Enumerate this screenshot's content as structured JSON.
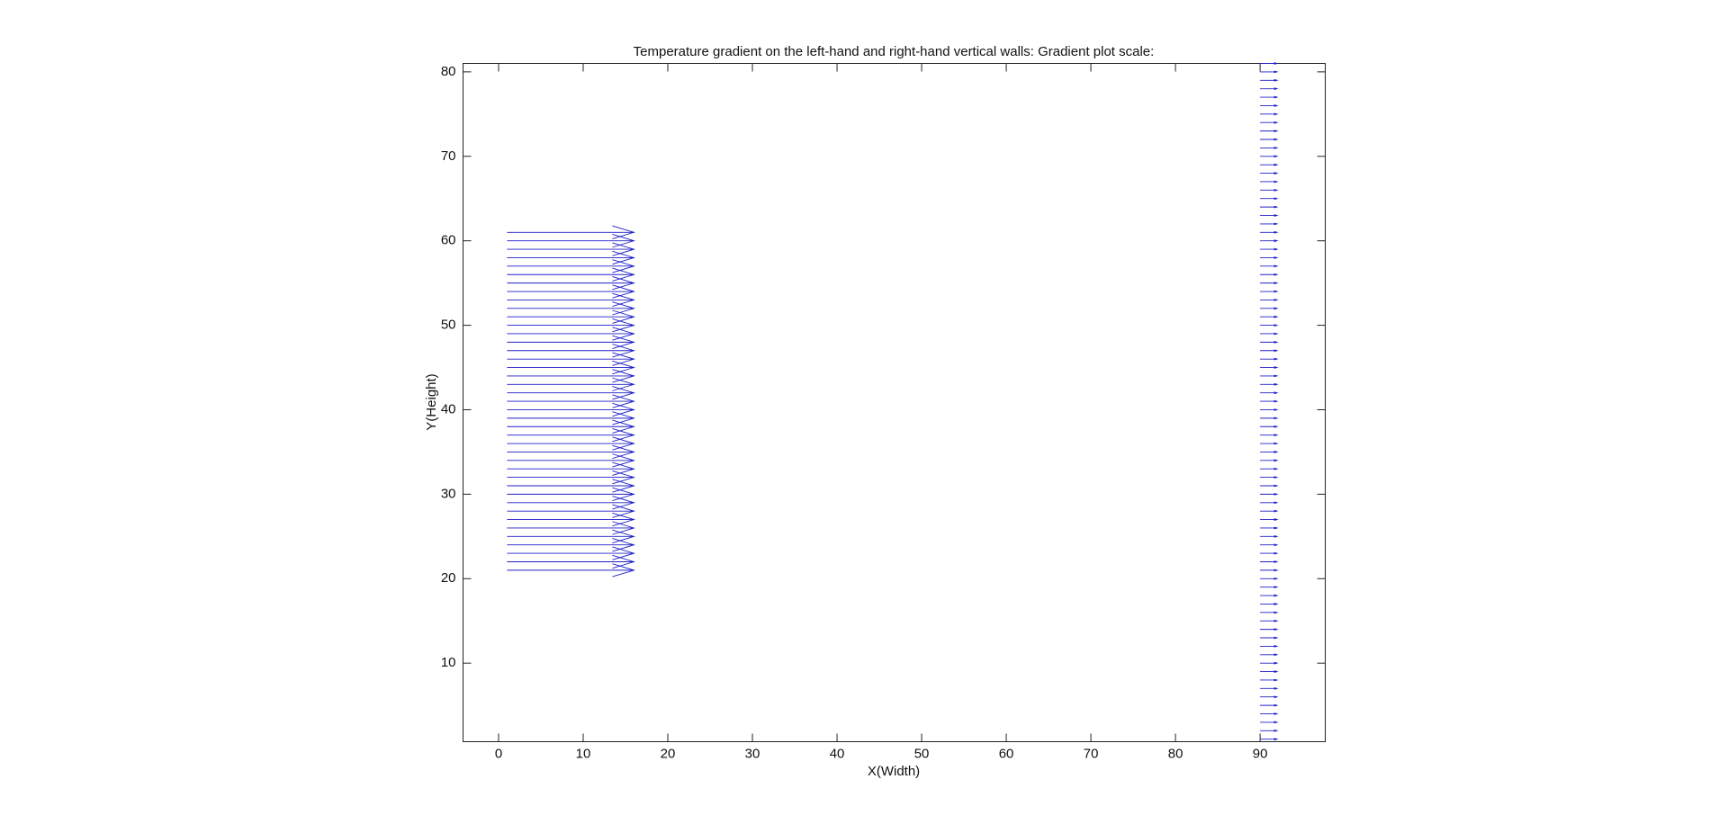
{
  "chart_data": {
    "type": "quiver",
    "title": "Temperature gradient on the left-hand and right-hand vertical walls: Gradient plot scale:",
    "xlabel": "X(Width)",
    "ylabel": "Y(Height)",
    "xlim": [
      -4.2,
      97.7
    ],
    "ylim": [
      0.7,
      81.0
    ],
    "xticks": [
      0,
      10,
      20,
      30,
      40,
      50,
      60,
      70,
      80,
      90
    ],
    "yticks": [
      10,
      20,
      30,
      40,
      50,
      60,
      70,
      80
    ],
    "color": "#1f1fc8",
    "series": [
      {
        "x": [
          1,
          1,
          1,
          1,
          1,
          1,
          1,
          1,
          1,
          1,
          1,
          1,
          1,
          1,
          1,
          1,
          1,
          1,
          1,
          1,
          1,
          1,
          1,
          1,
          1,
          1,
          1,
          1,
          1,
          1,
          1,
          1,
          1,
          1,
          1,
          1,
          1,
          1,
          1,
          1,
          1
        ],
        "y": [
          21,
          22,
          23,
          24,
          25,
          26,
          27,
          28,
          29,
          30,
          31,
          32,
          33,
          34,
          35,
          36,
          37,
          38,
          39,
          40,
          41,
          42,
          43,
          44,
          45,
          46,
          47,
          48,
          49,
          50,
          51,
          52,
          53,
          54,
          55,
          56,
          57,
          58,
          59,
          60,
          61
        ],
        "u": [
          15,
          15,
          15,
          15,
          15,
          15,
          15,
          15,
          15,
          15,
          15,
          15,
          15,
          15,
          15,
          15,
          15,
          15,
          15,
          15,
          15,
          15,
          15,
          15,
          15,
          15,
          15,
          15,
          15,
          15,
          15,
          15,
          15,
          15,
          15,
          15,
          15,
          15,
          15,
          15,
          15
        ]
      },
      {
        "x": [
          90,
          90,
          90,
          90,
          90,
          90,
          90,
          90,
          90,
          90,
          90,
          90,
          90,
          90,
          90,
          90,
          90,
          90,
          90,
          90,
          90,
          90,
          90,
          90,
          90,
          90,
          90,
          90,
          90,
          90,
          90,
          90,
          90,
          90,
          90,
          90,
          90,
          90,
          90,
          90,
          90,
          90,
          90,
          90,
          90,
          90,
          90,
          90,
          90,
          90,
          90,
          90,
          90,
          90,
          90,
          90,
          90,
          90,
          90,
          90,
          90,
          90,
          90,
          90,
          90,
          90,
          90,
          90,
          90,
          90,
          90,
          90,
          90,
          90,
          90,
          90,
          90,
          90,
          90,
          90,
          90
        ],
        "y": [
          1,
          2,
          3,
          4,
          5,
          6,
          7,
          8,
          9,
          10,
          11,
          12,
          13,
          14,
          15,
          16,
          17,
          18,
          19,
          20,
          21,
          22,
          23,
          24,
          25,
          26,
          27,
          28,
          29,
          30,
          31,
          32,
          33,
          34,
          35,
          36,
          37,
          38,
          39,
          40,
          41,
          42,
          43,
          44,
          45,
          46,
          47,
          48,
          49,
          50,
          51,
          52,
          53,
          54,
          55,
          56,
          57,
          58,
          59,
          60,
          61,
          62,
          63,
          64,
          65,
          66,
          67,
          68,
          69,
          70,
          71,
          72,
          73,
          74,
          75,
          76,
          77,
          78,
          79,
          80,
          81
        ],
        "u": [
          2,
          2,
          2,
          2,
          2,
          2,
          2,
          2,
          2,
          2,
          2,
          2,
          2,
          2,
          2,
          2,
          2,
          2,
          2,
          2,
          2,
          2,
          2,
          2,
          2,
          2,
          2,
          2,
          2,
          2,
          2,
          2,
          2,
          2,
          2,
          2,
          2,
          2,
          2,
          2,
          2,
          2,
          2,
          2,
          2,
          2,
          2,
          2,
          2,
          2,
          2,
          2,
          2,
          2,
          2,
          2,
          2,
          2,
          2,
          2,
          2,
          2,
          2,
          2,
          2,
          2,
          2,
          2,
          2,
          2,
          2,
          2,
          2,
          2,
          2,
          2,
          2,
          2,
          2,
          2,
          2
        ]
      }
    ]
  }
}
